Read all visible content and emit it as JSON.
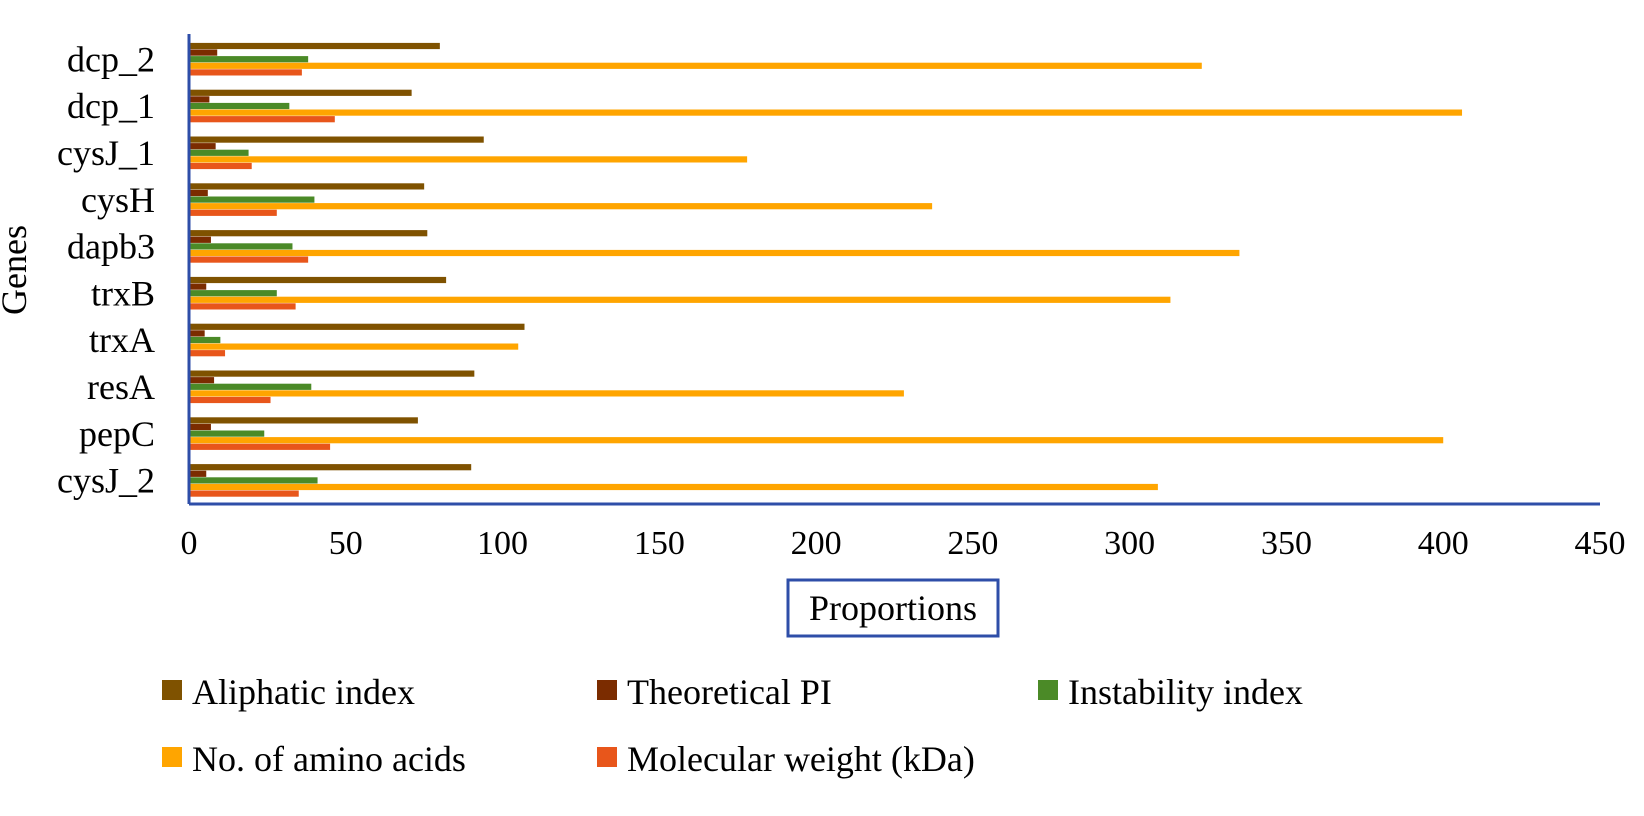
{
  "chart_data": {
    "type": "bar",
    "orientation": "horizontal",
    "categories": [
      "cysJ_2",
      "pepC",
      "resA",
      "trxA",
      "trxB",
      "dapb3",
      "cysH",
      "cysJ_1",
      "dcp_1",
      "dcp_2"
    ],
    "series": [
      {
        "name": "Aliphatic index",
        "color": "#7f5200",
        "values": [
          90,
          73,
          91,
          107,
          82,
          76,
          75,
          94,
          71,
          80
        ]
      },
      {
        "name": "Theoretical PI",
        "color": "#7b2c00",
        "values": [
          5.5,
          7,
          8,
          5,
          5.5,
          7,
          6,
          8.5,
          6.5,
          9
        ]
      },
      {
        "name": "Instability index",
        "color": "#4b8a27",
        "values": [
          41,
          24,
          39,
          10,
          28,
          33,
          40,
          19,
          32,
          38
        ]
      },
      {
        "name": "No. of amino acids",
        "color": "#ffa500",
        "values": [
          309,
          400,
          228,
          105,
          313,
          335,
          237,
          178,
          406,
          323
        ]
      },
      {
        "name": "Molecular weight (kDa)",
        "color": "#e8561b",
        "values": [
          35,
          45,
          26,
          11.5,
          34,
          38,
          28,
          20,
          46.5,
          36
        ]
      }
    ],
    "xlim": [
      0,
      450
    ],
    "xticks": [
      0,
      50,
      100,
      150,
      200,
      250,
      300,
      350,
      400,
      450
    ],
    "xlabel": "Proportions",
    "ylabel": "Genes",
    "title": "",
    "grid": false,
    "legend_position": "bottom",
    "axis_color": "#2e4ea8"
  }
}
